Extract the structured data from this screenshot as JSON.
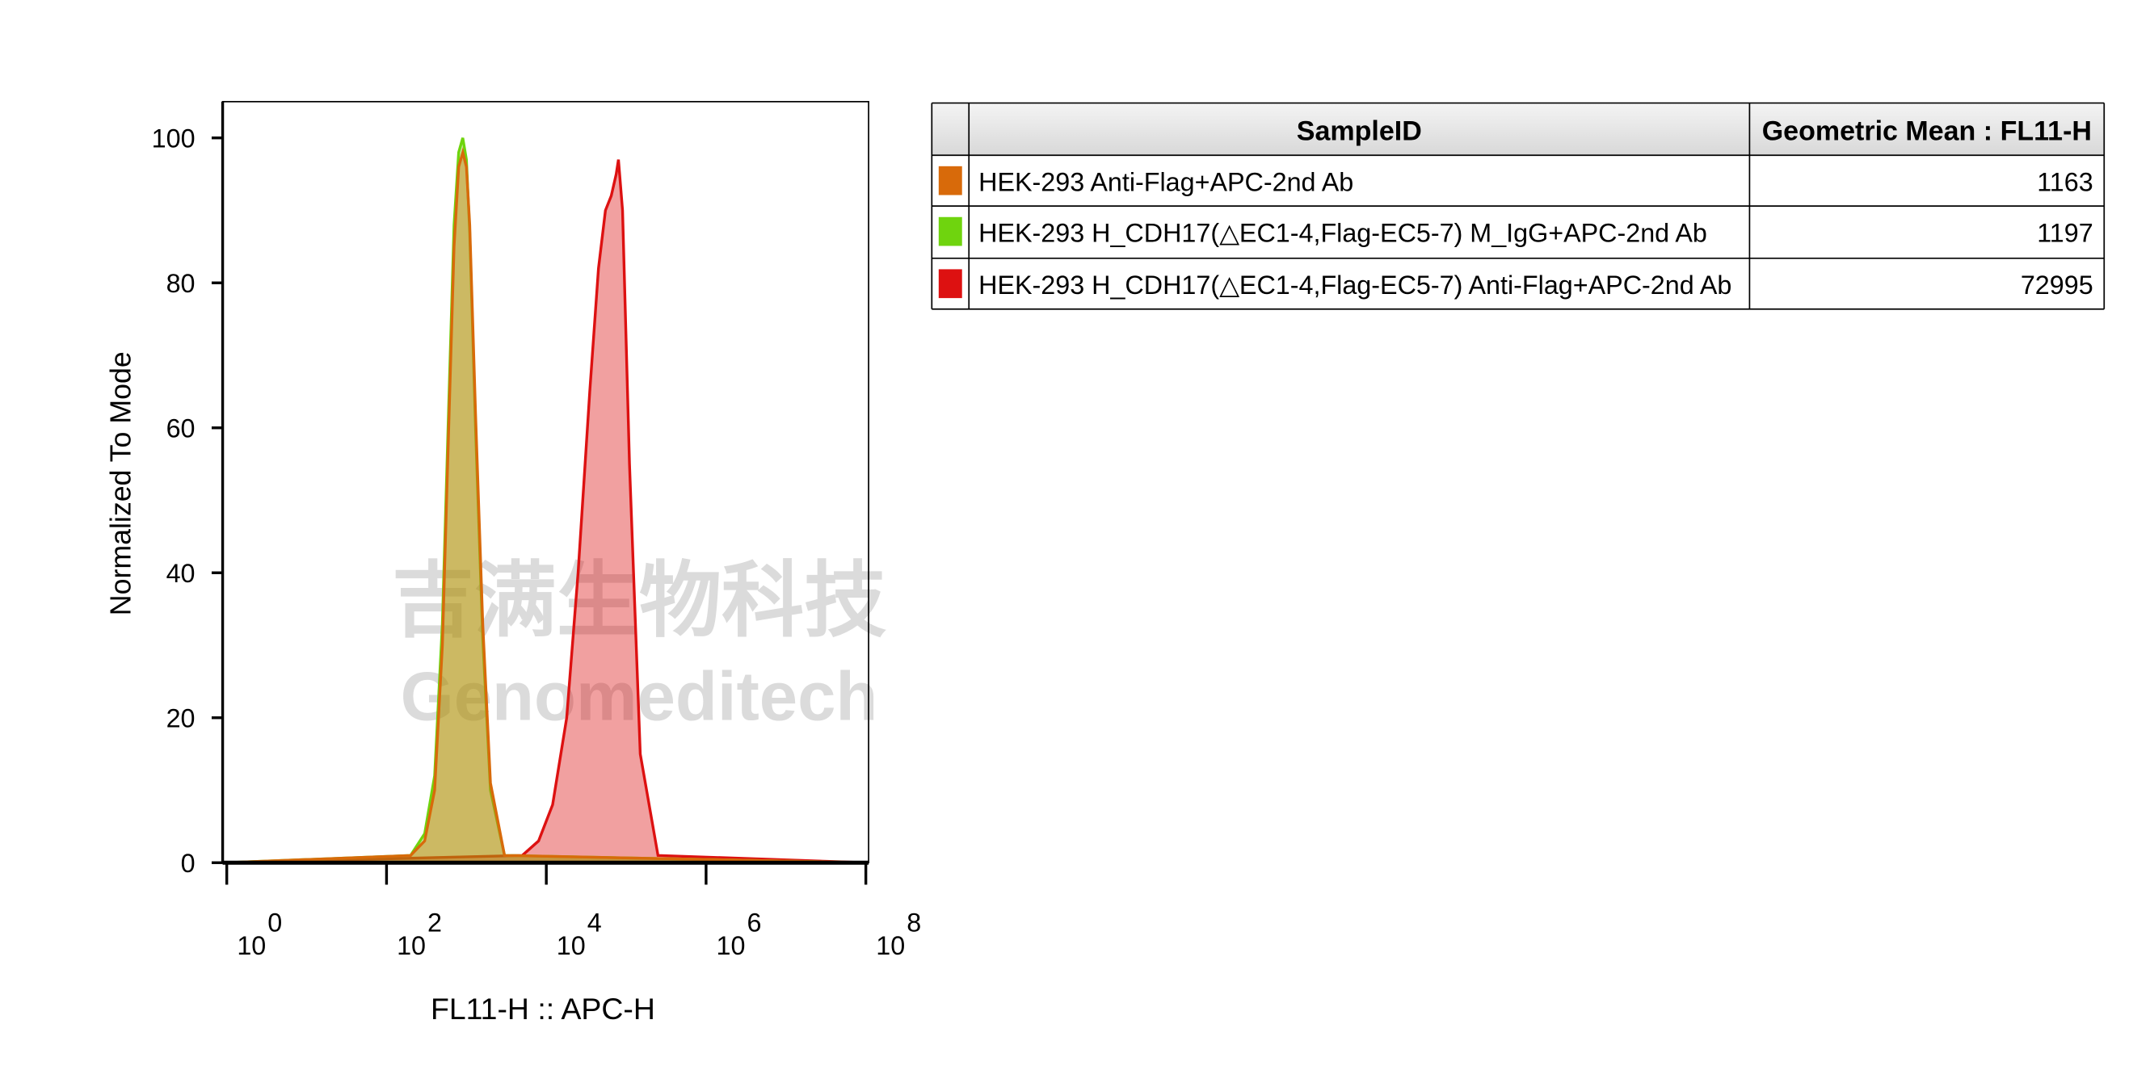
{
  "chart_data": {
    "type": "area",
    "xlabel": "FL11-H :: APC-H",
    "ylabel": "Normalized To Mode",
    "xscale": "log",
    "xlim": [
      1,
      100000000
    ],
    "ylim": [
      0,
      105
    ],
    "xticks": [
      {
        "value": 1,
        "label": "10",
        "exponent": "0"
      },
      {
        "value": 100,
        "label": "10",
        "exponent": "2"
      },
      {
        "value": 10000,
        "label": "10",
        "exponent": "4"
      },
      {
        "value": 1000000,
        "label": "10",
        "exponent": "6"
      },
      {
        "value": 100000000,
        "label": "10",
        "exponent": "8"
      }
    ],
    "yticks": [
      0,
      20,
      40,
      60,
      80,
      100
    ],
    "series": [
      {
        "name": "HEK-293 Anti-Flag+APC-2nd Ab",
        "color": "#d86a0a",
        "x": [
          1,
          200,
          300,
          400,
          500,
          600,
          700,
          800,
          900,
          1000,
          1100,
          1300,
          1600,
          2000,
          3000,
          100000000
        ],
        "values": [
          0,
          1,
          3,
          10,
          30,
          60,
          85,
          96,
          98,
          96,
          88,
          62,
          33,
          11,
          1,
          0
        ]
      },
      {
        "name": "HEK-293 H_CDH17(△EC1-4,Flag-EC5-7) M_IgG+APC-2nd Ab",
        "color": "#6fd40e",
        "x": [
          1,
          200,
          300,
          400,
          500,
          600,
          700,
          800,
          900,
          1000,
          1100,
          1300,
          1600,
          2000,
          3000,
          100000000
        ],
        "values": [
          0,
          1,
          4,
          12,
          33,
          63,
          88,
          98,
          100,
          97,
          87,
          60,
          31,
          10,
          1,
          0
        ]
      },
      {
        "name": "HEK-293 H_CDH17(△EC1-4,Flag-EC5-7) Anti-Flag+APC-2nd Ab",
        "color": "#dd1111",
        "x": [
          1,
          5000,
          8000,
          12000,
          18000,
          25000,
          35000,
          45000,
          55000,
          65000,
          75000,
          80000,
          90000,
          110000,
          150000,
          250000,
          100000000
        ],
        "values": [
          0,
          1,
          3,
          8,
          20,
          40,
          65,
          82,
          90,
          92,
          95,
          97,
          90,
          55,
          15,
          1,
          0
        ]
      }
    ]
  },
  "table": {
    "columns": [
      "SampleID",
      "Geometric Mean : FL11-H"
    ],
    "geometric_means": [
      1163,
      1197,
      72995
    ]
  },
  "watermark": {
    "chinese": "吉满生物科技",
    "english": "Genomeditech"
  }
}
